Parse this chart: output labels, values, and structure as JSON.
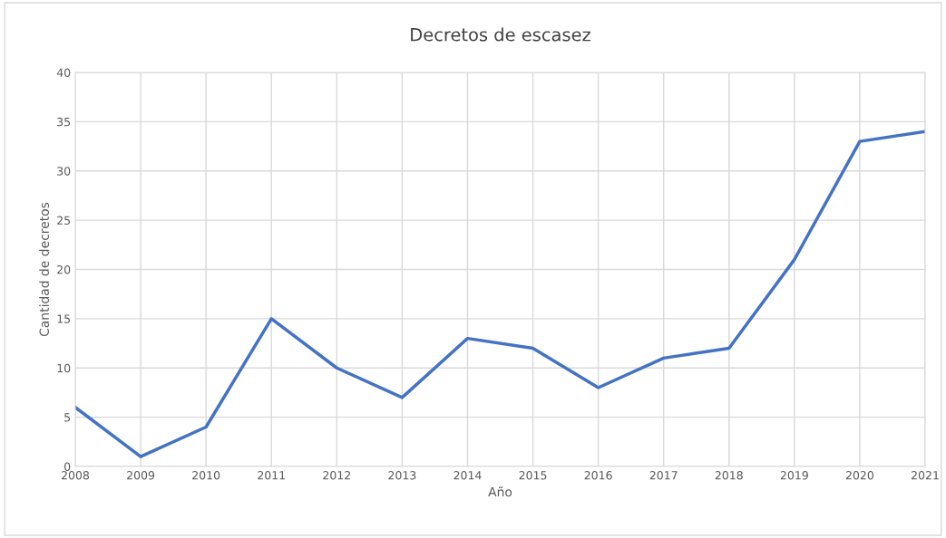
{
  "chart_data": {
    "type": "line",
    "title": "Decretos de escasez",
    "xlabel": "Año",
    "ylabel": "Cantidad de decretos",
    "x": [
      2008,
      2009,
      2010,
      2011,
      2012,
      2013,
      2014,
      2015,
      2016,
      2017,
      2018,
      2019,
      2020,
      2021
    ],
    "series": [
      {
        "color": "#4472c4",
        "values": [
          6,
          1,
          4,
          15,
          10,
          7,
          13,
          12,
          8,
          11,
          12,
          21,
          33,
          34
        ]
      }
    ],
    "xlim": [
      2008,
      2021
    ],
    "xticks": [
      2008,
      2009,
      2010,
      2011,
      2012,
      2013,
      2014,
      2015,
      2016,
      2017,
      2018,
      2019,
      2020,
      2021
    ],
    "ylim": [
      0,
      40
    ],
    "yticks": [
      0,
      5,
      10,
      15,
      20,
      25,
      30,
      35,
      40
    ],
    "grid": true,
    "legend": false,
    "marker": "none",
    "line_style": "solid"
  }
}
